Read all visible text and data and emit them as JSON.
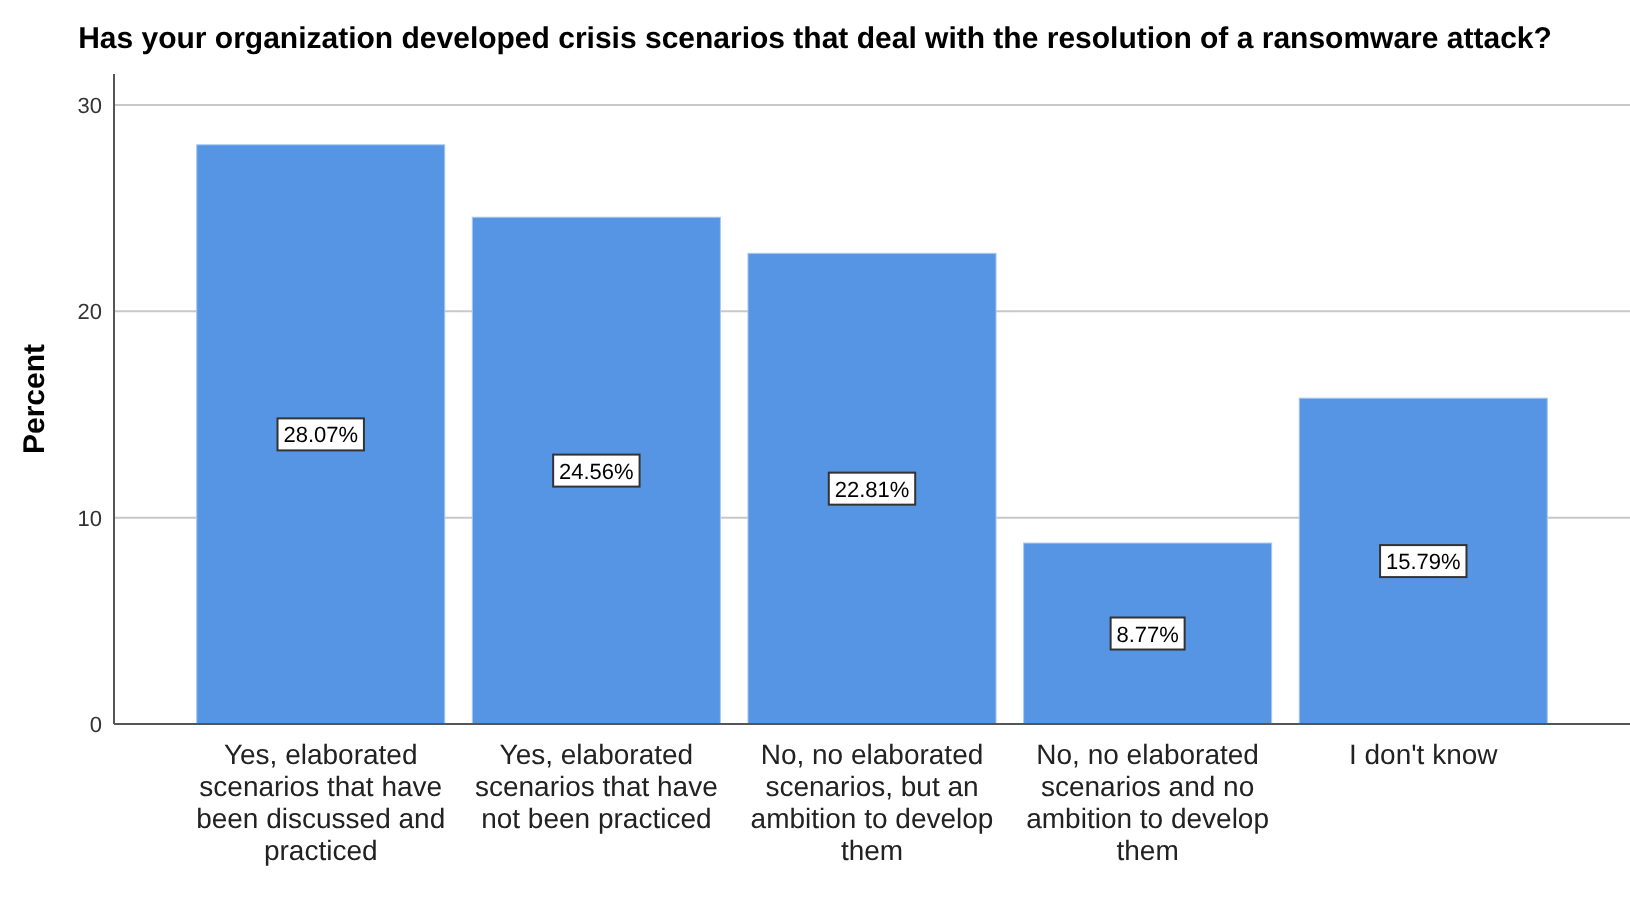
{
  "chart_data": {
    "type": "bar",
    "title": "Has your organization developed crisis scenarios that deal with the resolution of a ransomware attack?",
    "ylabel": "Percent",
    "categories": [
      "Yes, elaborated scenarios that have been discussed and practiced",
      "Yes, elaborated scenarios that have not been practiced",
      "No, no elaborated scenarios, but an ambition to develop them",
      "No, no elaborated scenarios and no ambition to develop them",
      "I don't know"
    ],
    "values": [
      28.07,
      24.56,
      22.81,
      8.77,
      15.79
    ],
    "value_labels": [
      "28.07%",
      "24.56%",
      "22.81%",
      "8.77%",
      "15.79%"
    ],
    "color": "#5595e4",
    "ylim": [
      0,
      31.5
    ],
    "yticks": [
      0,
      10,
      20,
      30
    ],
    "grid": "y"
  }
}
